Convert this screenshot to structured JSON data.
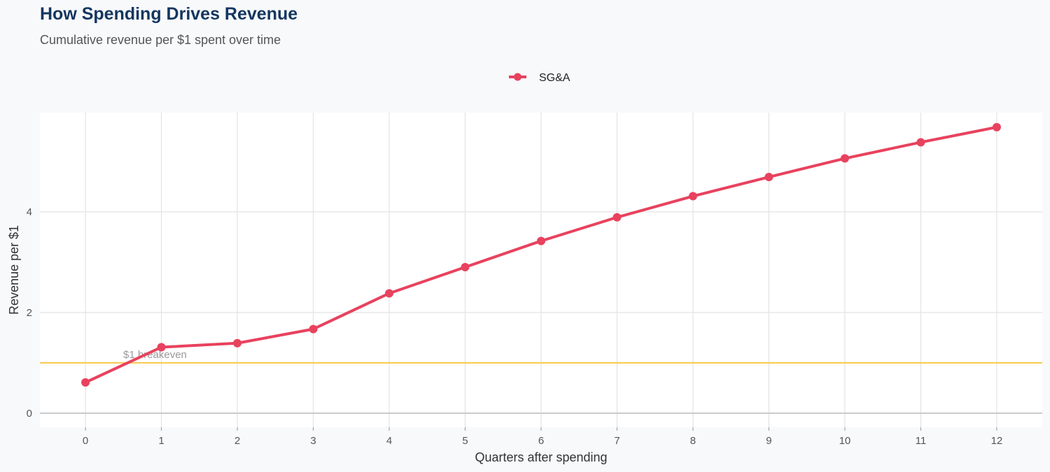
{
  "chart_data": {
    "type": "line",
    "title": "How Spending Drives Revenue",
    "subtitle": "Cumulative revenue per $1 spent over time",
    "xlabel": "Quarters after spending",
    "ylabel": "Revenue per $1",
    "x": [
      0,
      1,
      2,
      3,
      4,
      5,
      6,
      7,
      8,
      9,
      10,
      11,
      12
    ],
    "series": [
      {
        "name": "SG&A",
        "color": "#e8425e",
        "values": [
          0.61,
          1.31,
          1.39,
          1.67,
          2.38,
          2.9,
          3.42,
          3.89,
          4.31,
          4.69,
          5.06,
          5.38,
          5.68
        ]
      }
    ],
    "xlim": [
      -0.6,
      12.6
    ],
    "ylim": [
      -0.28,
      5.97
    ],
    "xticks": [
      0,
      1,
      2,
      3,
      4,
      5,
      6,
      7,
      8,
      9,
      10,
      11,
      12
    ],
    "yticks": [
      0,
      2,
      4
    ],
    "grid": true,
    "legend_position": "top",
    "reference_line": {
      "y": 1,
      "label": "$1 breakeven",
      "color": "#f7c948"
    }
  }
}
